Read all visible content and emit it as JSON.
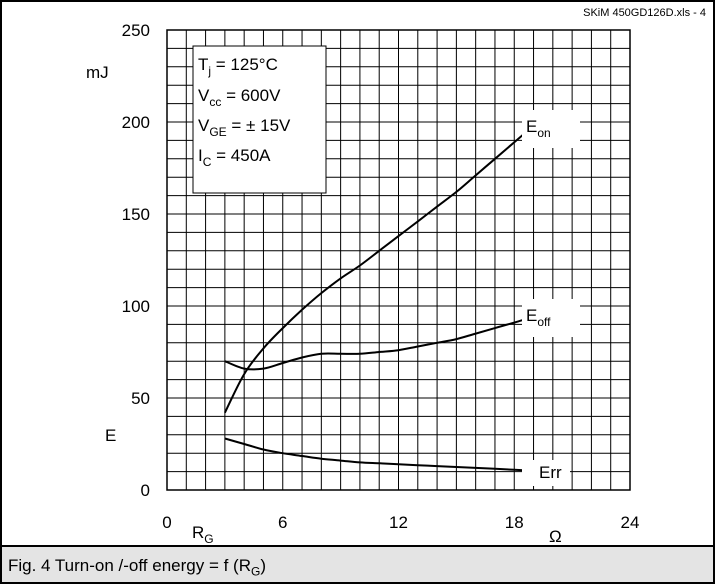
{
  "chart_data": {
    "type": "line",
    "source_label": "SKiM 450GD126D.xls - 4",
    "caption_prefix": "Fig. 4 Turn-on /-off energy = f (R",
    "caption_sub": "G",
    "caption_suffix": ")",
    "x_tick_labels": [
      "0",
      "6",
      "12",
      "18",
      "24"
    ],
    "y_tick_labels": [
      "0",
      "50",
      "100",
      "150",
      "200",
      "250"
    ],
    "xlim": [
      0,
      24
    ],
    "ylim": [
      0,
      250
    ],
    "xlabel": "R",
    "xlabel_sub": "G",
    "xunit": "Ω",
    "ylabel": "E",
    "yunit": "mJ",
    "grid": true,
    "conditions": [
      {
        "main": "T",
        "sub": "j",
        "rest": " = 125°C"
      },
      {
        "main": "V",
        "sub": "cc",
        "rest": " = 600V"
      },
      {
        "main": "V",
        "sub": "GE",
        "rest": " = ± 15V"
      },
      {
        "main": "I",
        "sub": "C",
        "rest": " = 450A"
      }
    ],
    "series": [
      {
        "name": "E",
        "name_sub": "on",
        "x": [
          3,
          4,
          5,
          6,
          7,
          8,
          9,
          10,
          11,
          12,
          13,
          14,
          15,
          16,
          17,
          18,
          19
        ],
        "y": [
          42,
          63,
          77,
          88,
          98,
          107,
          115,
          122,
          130,
          138,
          146,
          154,
          162,
          171,
          180,
          189,
          198
        ]
      },
      {
        "name": "E",
        "name_sub": "off",
        "x": [
          3,
          4,
          5,
          6,
          7,
          8,
          9,
          10,
          11,
          12,
          13,
          14,
          15,
          16,
          17,
          18,
          19
        ],
        "y": [
          70,
          66,
          66,
          69,
          72,
          74,
          74,
          74,
          75,
          76,
          78,
          80,
          82,
          85,
          88,
          91,
          94
        ]
      },
      {
        "name": "Err",
        "name_sub": "",
        "x": [
          3,
          4,
          5,
          6,
          7,
          8,
          9,
          10,
          11,
          12,
          13,
          14,
          15,
          16,
          17,
          18,
          19
        ],
        "y": [
          28,
          25,
          22,
          20,
          18.5,
          17,
          16,
          15,
          14.5,
          14,
          13.5,
          13,
          12.5,
          12,
          11.5,
          11,
          10.5
        ]
      }
    ]
  }
}
